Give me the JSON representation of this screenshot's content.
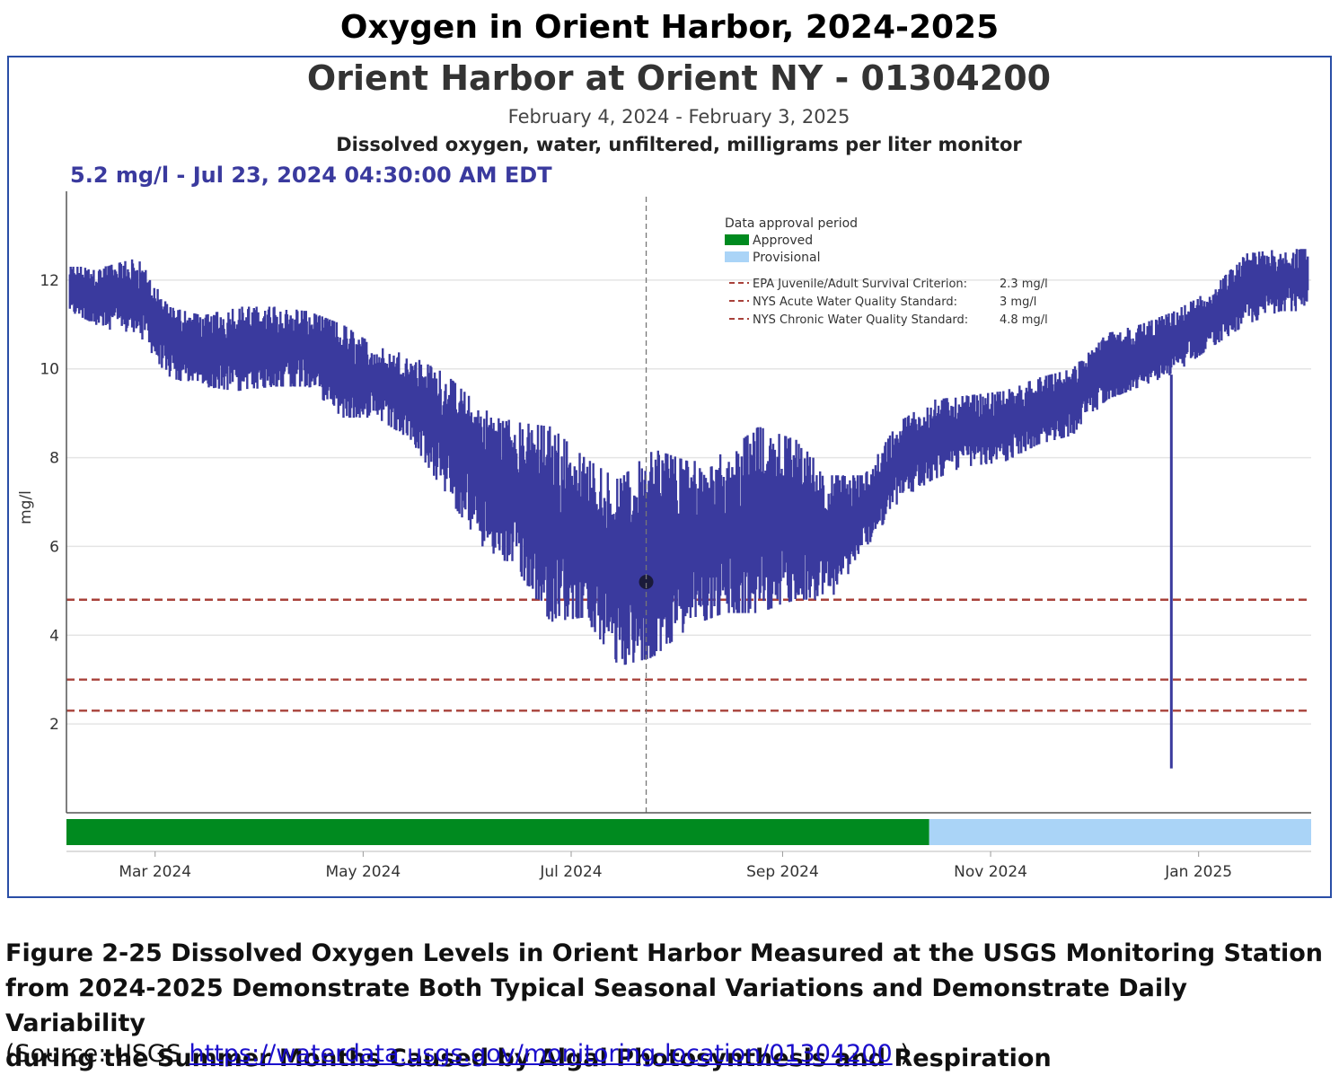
{
  "page_title": "Oxygen in Orient Harbor, 2024-2025",
  "colors": {
    "series": "#3a3a9e",
    "approved": "#008a1f",
    "provisional": "#aad4f7",
    "threshold": "#a8413a",
    "frame": "#2a4ea6",
    "hover_text": "#3a3a9e"
  },
  "chart_data": {
    "type": "line",
    "title": "Orient Harbor at Orient NY - 01304200",
    "subtitle": "February 4, 2024 - February 3, 2025",
    "parameter": "Dissolved oxygen, water, unfiltered, milligrams per liter monitor",
    "hover_readout": "5.2 mg/l - Jul 23, 2024 04:30:00 AM EDT",
    "hover_point": {
      "date": "2024-07-23",
      "value": 5.2
    },
    "ylabel": "mg/l",
    "xlabel": "",
    "ylim": [
      0,
      14
    ],
    "xlim": [
      "2024-02-04",
      "2025-02-03"
    ],
    "y_ticks": [
      2,
      4,
      6,
      8,
      10,
      12
    ],
    "x_ticks": [
      {
        "date": "2024-03-01",
        "label": "Mar 2024"
      },
      {
        "date": "2024-05-01",
        "label": "May 2024"
      },
      {
        "date": "2024-07-01",
        "label": "Jul 2024"
      },
      {
        "date": "2024-09-01",
        "label": "Sep 2024"
      },
      {
        "date": "2024-11-01",
        "label": "Nov 2024"
      },
      {
        "date": "2025-01-01",
        "label": "Jan 2025"
      }
    ],
    "series": [
      {
        "name": "Dissolved oxygen (mg/l)",
        "daily_range": [
          {
            "date": "2024-02-05",
            "min": 11.3,
            "max": 12.3
          },
          {
            "date": "2024-02-15",
            "min": 10.9,
            "max": 12.3
          },
          {
            "date": "2024-02-25",
            "min": 10.8,
            "max": 12.5
          },
          {
            "date": "2024-03-05",
            "min": 9.8,
            "max": 11.4
          },
          {
            "date": "2024-03-15",
            "min": 9.6,
            "max": 11.2
          },
          {
            "date": "2024-03-25",
            "min": 9.5,
            "max": 11.4
          },
          {
            "date": "2024-04-05",
            "min": 9.6,
            "max": 11.4
          },
          {
            "date": "2024-04-15",
            "min": 9.6,
            "max": 11.3
          },
          {
            "date": "2024-04-25",
            "min": 8.9,
            "max": 11.0
          },
          {
            "date": "2024-05-05",
            "min": 8.9,
            "max": 10.5
          },
          {
            "date": "2024-05-15",
            "min": 8.4,
            "max": 10.3
          },
          {
            "date": "2024-05-25",
            "min": 7.2,
            "max": 9.9
          },
          {
            "date": "2024-06-05",
            "min": 6.0,
            "max": 9.1
          },
          {
            "date": "2024-06-15",
            "min": 5.5,
            "max": 8.8
          },
          {
            "date": "2024-06-25",
            "min": 4.3,
            "max": 8.7
          },
          {
            "date": "2024-07-05",
            "min": 4.4,
            "max": 8.0
          },
          {
            "date": "2024-07-15",
            "min": 3.3,
            "max": 7.5
          },
          {
            "date": "2024-07-25",
            "min": 3.5,
            "max": 8.2
          },
          {
            "date": "2024-08-05",
            "min": 4.2,
            "max": 7.9
          },
          {
            "date": "2024-08-15",
            "min": 4.5,
            "max": 8.1
          },
          {
            "date": "2024-08-25",
            "min": 4.5,
            "max": 8.7
          },
          {
            "date": "2024-09-05",
            "min": 4.8,
            "max": 8.4
          },
          {
            "date": "2024-09-15",
            "min": 4.8,
            "max": 7.6
          },
          {
            "date": "2024-09-25",
            "min": 5.9,
            "max": 7.6
          },
          {
            "date": "2024-10-05",
            "min": 7.0,
            "max": 8.8
          },
          {
            "date": "2024-10-15",
            "min": 7.5,
            "max": 9.3
          },
          {
            "date": "2024-10-25",
            "min": 7.8,
            "max": 9.4
          },
          {
            "date": "2024-11-05",
            "min": 7.9,
            "max": 9.5
          },
          {
            "date": "2024-11-15",
            "min": 8.3,
            "max": 9.8
          },
          {
            "date": "2024-11-25",
            "min": 8.5,
            "max": 10.0
          },
          {
            "date": "2024-12-05",
            "min": 9.3,
            "max": 10.8
          },
          {
            "date": "2024-12-15",
            "min": 9.6,
            "max": 11.0
          },
          {
            "date": "2024-12-25",
            "min": 9.9,
            "max": 11.3
          },
          {
            "date": "2025-01-05",
            "min": 10.5,
            "max": 11.8
          },
          {
            "date": "2025-01-15",
            "min": 11.0,
            "max": 12.6
          },
          {
            "date": "2025-01-25",
            "min": 11.3,
            "max": 12.7
          },
          {
            "date": "2025-02-02",
            "min": 11.3,
            "max": 12.7
          }
        ],
        "outlier": {
          "date": "2024-12-24",
          "value": 1.0
        }
      }
    ],
    "thresholds": [
      {
        "label": "EPA Juvenile/Adult Survival Criterion:",
        "value_text": "2.3 mg/l",
        "value": 2.3
      },
      {
        "label": "NYS Acute Water Quality Standard:",
        "value_text": "3 mg/l",
        "value": 3
      },
      {
        "label": "NYS Chronic Water Quality Standard:",
        "value_text": "4.8 mg/l",
        "value": 4.8
      }
    ],
    "approval_periods": [
      {
        "label": "Approved",
        "start": "2024-02-04",
        "end": "2024-10-14"
      },
      {
        "label": "Provisional",
        "start": "2024-10-14",
        "end": "2025-02-03"
      }
    ],
    "legend": {
      "title": "Data approval period",
      "position": "top-right"
    }
  },
  "caption": {
    "lines": [
      "Figure 2-25  Dissolved Oxygen Levels in Orient Harbor Measured at the USGS Monitoring Station",
      "from 2024-2025 Demonstrate Both Typical Seasonal Variations and Demonstrate Daily Variability",
      "during the Summer Months Caused by Algal Photosynthesis and Respiration"
    ],
    "source_prefix": "(Source:  USGS ",
    "source_link": "https://waterdata.usgs.gov/monitoring-location/01304200",
    "source_suffix": " )"
  }
}
